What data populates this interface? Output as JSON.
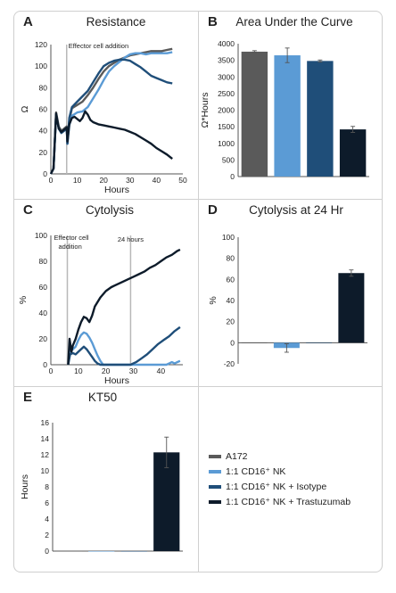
{
  "colors": {
    "A172": "#5a5a5a",
    "NK": "#5b9bd5",
    "Isotype": "#1f4e79",
    "Trastuzumab": "#0d1b2a",
    "annotation": "#b8b8b8",
    "axis": "#555555"
  },
  "legend": [
    {
      "label": "A172",
      "color": "#5a5a5a"
    },
    {
      "label": "1:1 CD16⁺ NK",
      "color": "#5b9bd5"
    },
    {
      "label": "1:1 CD16⁺ NK + Isotype",
      "color": "#1f4e79"
    },
    {
      "label": "1:1 CD16⁺ NK + Trastuzumab",
      "color": "#0d1b2a"
    }
  ],
  "chart_data": [
    {
      "panel": "A",
      "type": "line",
      "title": "Resistance",
      "xlabel": "Hours",
      "ylabel": "Ω",
      "xlim": [
        0,
        50
      ],
      "ylim": [
        0,
        120
      ],
      "xticks": [
        0,
        10,
        20,
        30,
        40,
        50
      ],
      "yticks": [
        0,
        20,
        40,
        60,
        80,
        100,
        120
      ],
      "annotations": [
        {
          "x": 6,
          "text": "Effector cell addition"
        }
      ],
      "series": [
        {
          "name": "A172",
          "color": "#5a5a5a",
          "points": [
            [
              0,
              0
            ],
            [
              1,
              5
            ],
            [
              2,
              57
            ],
            [
              3,
              44
            ],
            [
              4,
              40
            ],
            [
              5,
              42
            ],
            [
              6,
              44
            ],
            [
              6.3,
              30
            ],
            [
              7,
              50
            ],
            [
              8,
              61
            ],
            [
              10,
              64
            ],
            [
              12,
              67
            ],
            [
              14,
              73
            ],
            [
              16,
              80
            ],
            [
              18,
              88
            ],
            [
              20,
              95
            ],
            [
              22,
              100
            ],
            [
              24,
              103
            ],
            [
              26,
              106
            ],
            [
              28,
              108
            ],
            [
              30,
              110
            ],
            [
              32,
              111
            ],
            [
              34,
              112
            ],
            [
              36,
              113
            ],
            [
              38,
              114
            ],
            [
              40,
              114
            ],
            [
              42,
              114
            ],
            [
              44,
              115
            ],
            [
              46,
              116
            ]
          ]
        },
        {
          "name": "1:1 CD16⁺ NK",
          "color": "#5b9bd5",
          "points": [
            [
              0,
              0
            ],
            [
              1,
              5
            ],
            [
              2,
              55
            ],
            [
              3,
              42
            ],
            [
              4,
              38
            ],
            [
              5,
              40
            ],
            [
              6,
              42
            ],
            [
              6.3,
              28
            ],
            [
              7,
              45
            ],
            [
              8,
              54
            ],
            [
              10,
              57
            ],
            [
              12,
              58
            ],
            [
              14,
              62
            ],
            [
              16,
              70
            ],
            [
              18,
              78
            ],
            [
              20,
              87
            ],
            [
              22,
              95
            ],
            [
              24,
              100
            ],
            [
              26,
              104
            ],
            [
              28,
              108
            ],
            [
              30,
              111
            ],
            [
              32,
              112
            ],
            [
              34,
              112
            ],
            [
              36,
              111
            ],
            [
              38,
              112
            ],
            [
              40,
              112
            ],
            [
              42,
              112
            ],
            [
              44,
              112
            ],
            [
              46,
              113
            ]
          ]
        },
        {
          "name": "1:1 CD16⁺ NK + Isotype",
          "color": "#1f4e79",
          "points": [
            [
              0,
              0
            ],
            [
              1,
              5
            ],
            [
              2,
              55
            ],
            [
              3,
              42
            ],
            [
              4,
              38
            ],
            [
              5,
              40
            ],
            [
              6,
              42
            ],
            [
              6.3,
              28
            ],
            [
              7,
              52
            ],
            [
              8,
              62
            ],
            [
              10,
              67
            ],
            [
              12,
              72
            ],
            [
              14,
              77
            ],
            [
              16,
              85
            ],
            [
              18,
              93
            ],
            [
              20,
              100
            ],
            [
              22,
              103
            ],
            [
              24,
              105
            ],
            [
              26,
              106
            ],
            [
              28,
              106
            ],
            [
              30,
              105
            ],
            [
              32,
              102
            ],
            [
              34,
              99
            ],
            [
              36,
              95
            ],
            [
              38,
              91
            ],
            [
              40,
              89
            ],
            [
              42,
              87
            ],
            [
              44,
              85
            ],
            [
              46,
              84
            ]
          ]
        },
        {
          "name": "1:1 CD16⁺ NK + Trastuzumab",
          "color": "#0d1b2a",
          "points": [
            [
              0,
              0
            ],
            [
              1,
              5
            ],
            [
              2,
              56
            ],
            [
              3,
              42
            ],
            [
              4,
              39
            ],
            [
              5,
              41
            ],
            [
              6,
              43
            ],
            [
              6.3,
              30
            ],
            [
              7,
              46
            ],
            [
              8,
              52
            ],
            [
              9,
              53
            ],
            [
              10,
              51
            ],
            [
              11,
              49
            ],
            [
              12,
              52
            ],
            [
              13,
              58
            ],
            [
              14,
              55
            ],
            [
              15,
              50
            ],
            [
              16,
              48
            ],
            [
              18,
              46
            ],
            [
              20,
              45
            ],
            [
              22,
              44
            ],
            [
              24,
              43
            ],
            [
              26,
              42
            ],
            [
              28,
              41
            ],
            [
              30,
              39
            ],
            [
              32,
              37
            ],
            [
              34,
              34
            ],
            [
              36,
              31
            ],
            [
              38,
              28
            ],
            [
              40,
              24
            ],
            [
              42,
              21
            ],
            [
              44,
              18
            ],
            [
              46,
              14
            ]
          ]
        }
      ]
    },
    {
      "panel": "B",
      "type": "bar",
      "title": "Area Under the Curve",
      "xlabel": "",
      "ylabel": "Ω*Hours",
      "ylim": [
        0,
        4000
      ],
      "yticks": [
        0,
        500,
        1000,
        1500,
        2000,
        2500,
        3000,
        3500,
        4000
      ],
      "categories": [
        "A172",
        "1:1 CD16⁺ NK",
        "1:1 CD16⁺ NK + Isotype",
        "1:1 CD16⁺ NK + Trastuzumab"
      ],
      "values": [
        3760,
        3650,
        3480,
        1420
      ],
      "errors": [
        30,
        220,
        30,
        90
      ],
      "colors": [
        "#5a5a5a",
        "#5b9bd5",
        "#1f4e79",
        "#0d1b2a"
      ]
    },
    {
      "panel": "C",
      "type": "line",
      "title": "Cytolysis",
      "xlabel": "Hours",
      "ylabel": "%",
      "xlim": [
        0,
        48
      ],
      "ylim": [
        0,
        100
      ],
      "xticks": [
        0,
        10,
        20,
        30,
        40
      ],
      "yticks": [
        0,
        20,
        40,
        60,
        80,
        100
      ],
      "annotations": [
        {
          "x": 6,
          "text": "Effector cell addition"
        },
        {
          "x": 29,
          "text": "24 hours"
        }
      ],
      "series": [
        {
          "name": "1:1 CD16⁺ NK",
          "color": "#5b9bd5",
          "points": [
            [
              6.3,
              0
            ],
            [
              7,
              10
            ],
            [
              8,
              12
            ],
            [
              9,
              14
            ],
            [
              10,
              19
            ],
            [
              11,
              23
            ],
            [
              12,
              25
            ],
            [
              13,
              24
            ],
            [
              14,
              21
            ],
            [
              15,
              17
            ],
            [
              16,
              12
            ],
            [
              17,
              7
            ],
            [
              18,
              3
            ],
            [
              19,
              0
            ],
            [
              20,
              0
            ],
            [
              42,
              0
            ],
            [
              43,
              1
            ],
            [
              44,
              2
            ],
            [
              45,
              1
            ],
            [
              46,
              2
            ],
            [
              47,
              3
            ]
          ]
        },
        {
          "name": "1:1 CD16⁺ NK + Isotype",
          "color": "#1f4e79",
          "points": [
            [
              6.3,
              0
            ],
            [
              7,
              8
            ],
            [
              8,
              9
            ],
            [
              9,
              8
            ],
            [
              10,
              10
            ],
            [
              11,
              12
            ],
            [
              12,
              14
            ],
            [
              13,
              12
            ],
            [
              14,
              9
            ],
            [
              15,
              6
            ],
            [
              16,
              3
            ],
            [
              17,
              1
            ],
            [
              18,
              0
            ],
            [
              29,
              0
            ],
            [
              31,
              2
            ],
            [
              33,
              5
            ],
            [
              35,
              8
            ],
            [
              37,
              12
            ],
            [
              39,
              16
            ],
            [
              41,
              19
            ],
            [
              43,
              22
            ],
            [
              45,
              26
            ],
            [
              47,
              29
            ]
          ]
        },
        {
          "name": "1:1 CD16⁺ NK + Trastuzumab",
          "color": "#0d1b2a",
          "points": [
            [
              6.3,
              0
            ],
            [
              6.8,
              20
            ],
            [
              7.5,
              10
            ],
            [
              8,
              15
            ],
            [
              9,
              20
            ],
            [
              10,
              27
            ],
            [
              11,
              33
            ],
            [
              12,
              37
            ],
            [
              13,
              36
            ],
            [
              14,
              33
            ],
            [
              15,
              38
            ],
            [
              16,
              45
            ],
            [
              18,
              52
            ],
            [
              20,
              57
            ],
            [
              22,
              60
            ],
            [
              24,
              62
            ],
            [
              26,
              64
            ],
            [
              28,
              66
            ],
            [
              30,
              68
            ],
            [
              32,
              70
            ],
            [
              34,
              72
            ],
            [
              36,
              75
            ],
            [
              38,
              77
            ],
            [
              40,
              80
            ],
            [
              42,
              83
            ],
            [
              44,
              85
            ],
            [
              46,
              88
            ],
            [
              47,
              89
            ]
          ]
        }
      ]
    },
    {
      "panel": "D",
      "type": "bar",
      "title": "Cytolysis at 24 Hr",
      "xlabel": "",
      "ylabel": "%",
      "ylim": [
        -20,
        100
      ],
      "yticks": [
        -20,
        0,
        20,
        40,
        60,
        80,
        100
      ],
      "categories": [
        "A172",
        "1:1 CD16⁺ NK",
        "1:1 CD16⁺ NK + Isotype",
        "1:1 CD16⁺ NK + Trastuzumab"
      ],
      "values": [
        0,
        -5,
        0,
        66
      ],
      "errors": [
        0,
        4,
        0,
        3
      ],
      "colors": [
        "#5a5a5a",
        "#5b9bd5",
        "#1f4e79",
        "#0d1b2a"
      ]
    },
    {
      "panel": "E",
      "type": "bar",
      "title": "KT50",
      "xlabel": "",
      "ylabel": "Hours",
      "ylim": [
        0,
        16
      ],
      "yticks": [
        0,
        2,
        4,
        6,
        8,
        10,
        12,
        14,
        16
      ],
      "categories": [
        "A172",
        "1:1 CD16⁺ NK",
        "1:1 CD16⁺ NK + Isotype",
        "1:1 CD16⁺ NK + Trastuzumab"
      ],
      "values": [
        0,
        0,
        0,
        12.3
      ],
      "errors": [
        0,
        0,
        0,
        1.9
      ],
      "colors": [
        "#5a5a5a",
        "#5b9bd5",
        "#1f4e79",
        "#0d1b2a"
      ]
    }
  ]
}
